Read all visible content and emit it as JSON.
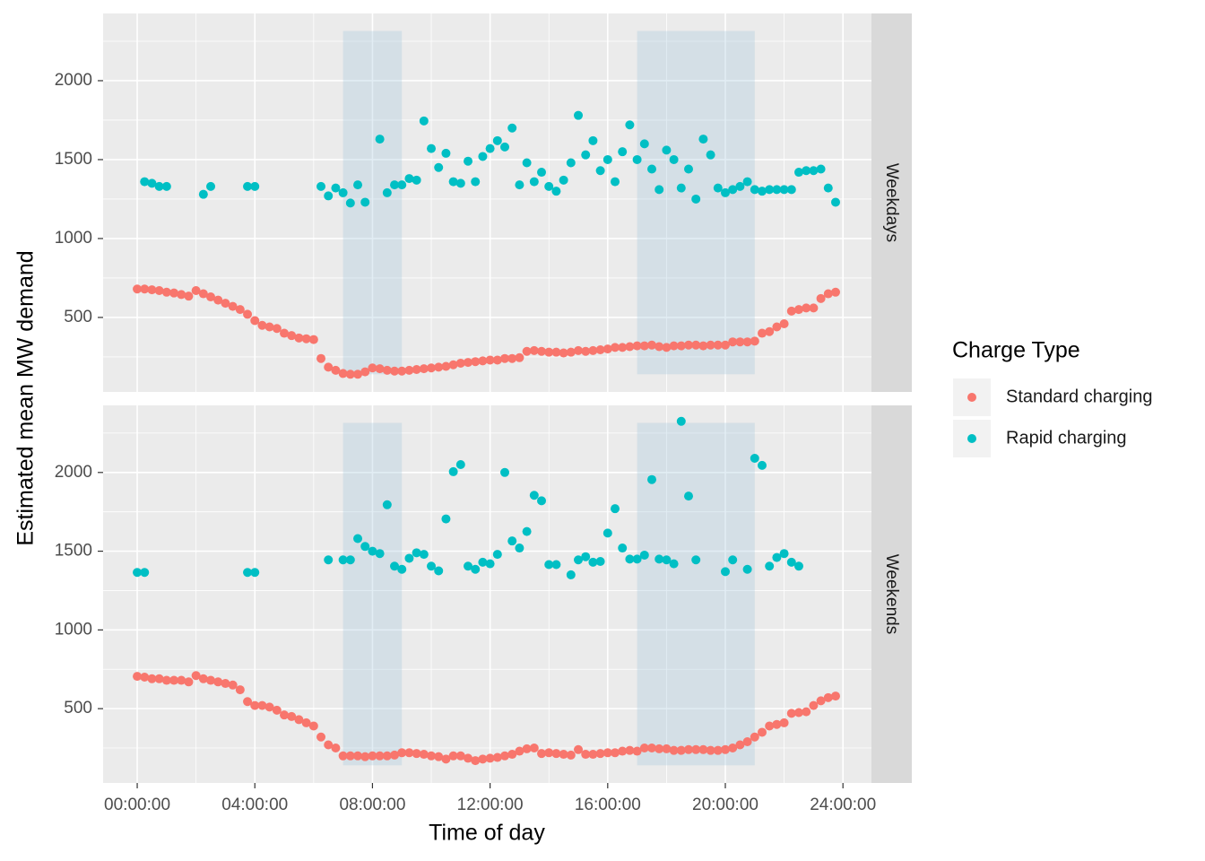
{
  "chart_data": {
    "type": "scatter",
    "xlabel": "Time of day",
    "ylabel": "Estimated mean MW demand",
    "legend_title": "Charge Type",
    "legend_position": "right",
    "grid": true,
    "xlim": [
      -1.16,
      24.97
    ],
    "xticks": [
      {
        "value": 0,
        "label": "00:00:00"
      },
      {
        "value": 4,
        "label": "04:00:00"
      },
      {
        "value": 8,
        "label": "08:00:00"
      },
      {
        "value": 12,
        "label": "12:00:00"
      },
      {
        "value": 16,
        "label": "16:00:00"
      },
      {
        "value": 20,
        "label": "20:00:00"
      },
      {
        "value": 24,
        "label": "24:00:00"
      }
    ],
    "ylim": [
      28,
      2426
    ],
    "yticks": [
      500,
      1000,
      1500,
      2000
    ],
    "shaded_regions": {
      "color": "#9fc3d9",
      "opacity": 0.3,
      "ymin": 140,
      "ymax": 2315,
      "ranges": [
        [
          7,
          9
        ],
        [
          17,
          21
        ]
      ]
    },
    "series": [
      {
        "name": "Standard charging",
        "color": "#F8766D"
      },
      {
        "name": "Rapid charging",
        "color": "#00BFC4"
      }
    ],
    "x": [
      0,
      0.25,
      0.5,
      0.75,
      1,
      1.25,
      1.5,
      1.75,
      2,
      2.25,
      2.5,
      2.75,
      3,
      3.25,
      3.5,
      3.75,
      4,
      4.25,
      4.5,
      4.75,
      5,
      5.25,
      5.5,
      5.75,
      6,
      6.25,
      6.5,
      6.75,
      7,
      7.25,
      7.5,
      7.75,
      8,
      8.25,
      8.5,
      8.75,
      9,
      9.25,
      9.5,
      9.75,
      10,
      10.25,
      10.5,
      10.75,
      11,
      11.25,
      11.5,
      11.75,
      12,
      12.25,
      12.5,
      12.75,
      13,
      13.25,
      13.5,
      13.75,
      14,
      14.25,
      14.5,
      14.75,
      15,
      15.25,
      15.5,
      15.75,
      16,
      16.25,
      16.5,
      16.75,
      17,
      17.25,
      17.5,
      17.75,
      18,
      18.25,
      18.5,
      18.75,
      19,
      19.25,
      19.5,
      19.75,
      20,
      20.25,
      20.5,
      20.75,
      21,
      21.25,
      21.5,
      21.75,
      22,
      22.25,
      22.5,
      22.75,
      23,
      23.25,
      23.5,
      23.75
    ],
    "facets": [
      {
        "label": "Weekdays",
        "values": [
          [
            680,
            680,
            675,
            670,
            660,
            655,
            645,
            635,
            670,
            650,
            630,
            610,
            590,
            570,
            550,
            520,
            480,
            450,
            440,
            430,
            400,
            385,
            370,
            365,
            360,
            240,
            185,
            165,
            145,
            140,
            140,
            155,
            180,
            175,
            165,
            160,
            160,
            165,
            170,
            175,
            180,
            185,
            190,
            200,
            210,
            215,
            220,
            225,
            230,
            230,
            240,
            240,
            245,
            285,
            290,
            285,
            280,
            280,
            275,
            280,
            290,
            285,
            290,
            295,
            300,
            310,
            310,
            315,
            320,
            320,
            325,
            315,
            310,
            320,
            320,
            325,
            325,
            320,
            325,
            325,
            325,
            345,
            345,
            345,
            350,
            400,
            410,
            440,
            460,
            540,
            550,
            560,
            560,
            620,
            650,
            660
          ],
          [
            null,
            1360,
            1350,
            1330,
            1330,
            null,
            null,
            null,
            null,
            1280,
            1330,
            null,
            null,
            null,
            null,
            1330,
            1330,
            null,
            null,
            null,
            null,
            null,
            null,
            null,
            null,
            1330,
            1270,
            1320,
            1290,
            1225,
            1340,
            1230,
            null,
            1630,
            1290,
            1340,
            1340,
            1380,
            1370,
            1745,
            1570,
            1450,
            1540,
            1360,
            1350,
            1490,
            1360,
            1520,
            1570,
            1620,
            1580,
            1700,
            1340,
            1480,
            1360,
            1420,
            1330,
            1300,
            1370,
            1480,
            1780,
            1530,
            1620,
            1430,
            1500,
            1360,
            1550,
            1720,
            1500,
            1600,
            1440,
            1310,
            1560,
            1500,
            1320,
            1440,
            1250,
            1630,
            1530,
            1320,
            1290,
            1310,
            1330,
            1360,
            1310,
            1300,
            1310,
            1310,
            1310,
            1310,
            1420,
            1430,
            1430,
            1440,
            1320,
            1230
          ]
        ]
      },
      {
        "label": "Weekends",
        "values": [
          [
            705,
            700,
            690,
            690,
            680,
            680,
            680,
            670,
            710,
            690,
            680,
            670,
            660,
            650,
            620,
            545,
            520,
            520,
            510,
            490,
            460,
            450,
            430,
            410,
            390,
            320,
            270,
            250,
            200,
            200,
            200,
            195,
            200,
            200,
            200,
            205,
            220,
            220,
            215,
            210,
            200,
            195,
            180,
            200,
            200,
            185,
            170,
            180,
            185,
            190,
            200,
            210,
            230,
            245,
            250,
            215,
            220,
            215,
            210,
            205,
            240,
            210,
            210,
            215,
            220,
            220,
            230,
            235,
            230,
            250,
            250,
            245,
            245,
            235,
            235,
            240,
            240,
            240,
            235,
            235,
            240,
            250,
            270,
            290,
            320,
            350,
            390,
            400,
            410,
            470,
            475,
            480,
            520,
            550,
            570,
            580
          ],
          [
            1365,
            1365,
            null,
            null,
            null,
            null,
            null,
            null,
            null,
            null,
            null,
            null,
            null,
            null,
            null,
            1365,
            1365,
            null,
            null,
            null,
            null,
            null,
            null,
            null,
            null,
            null,
            1445,
            null,
            1445,
            1445,
            1580,
            1530,
            1500,
            1485,
            1795,
            1405,
            1385,
            1455,
            1490,
            1480,
            1405,
            1375,
            1705,
            2005,
            2050,
            1405,
            1385,
            1430,
            1420,
            1480,
            2000,
            1565,
            1520,
            1625,
            1855,
            1820,
            1415,
            1415,
            null,
            1350,
            1445,
            1465,
            1430,
            1435,
            1615,
            1770,
            1520,
            1450,
            1450,
            1475,
            1955,
            1450,
            1445,
            1420,
            2325,
            1850,
            1445,
            null,
            null,
            null,
            1370,
            1445,
            null,
            1385,
            2090,
            2045,
            1405,
            1460,
            1485,
            1430,
            1405,
            null,
            null,
            null,
            null,
            null
          ]
        ]
      }
    ]
  }
}
